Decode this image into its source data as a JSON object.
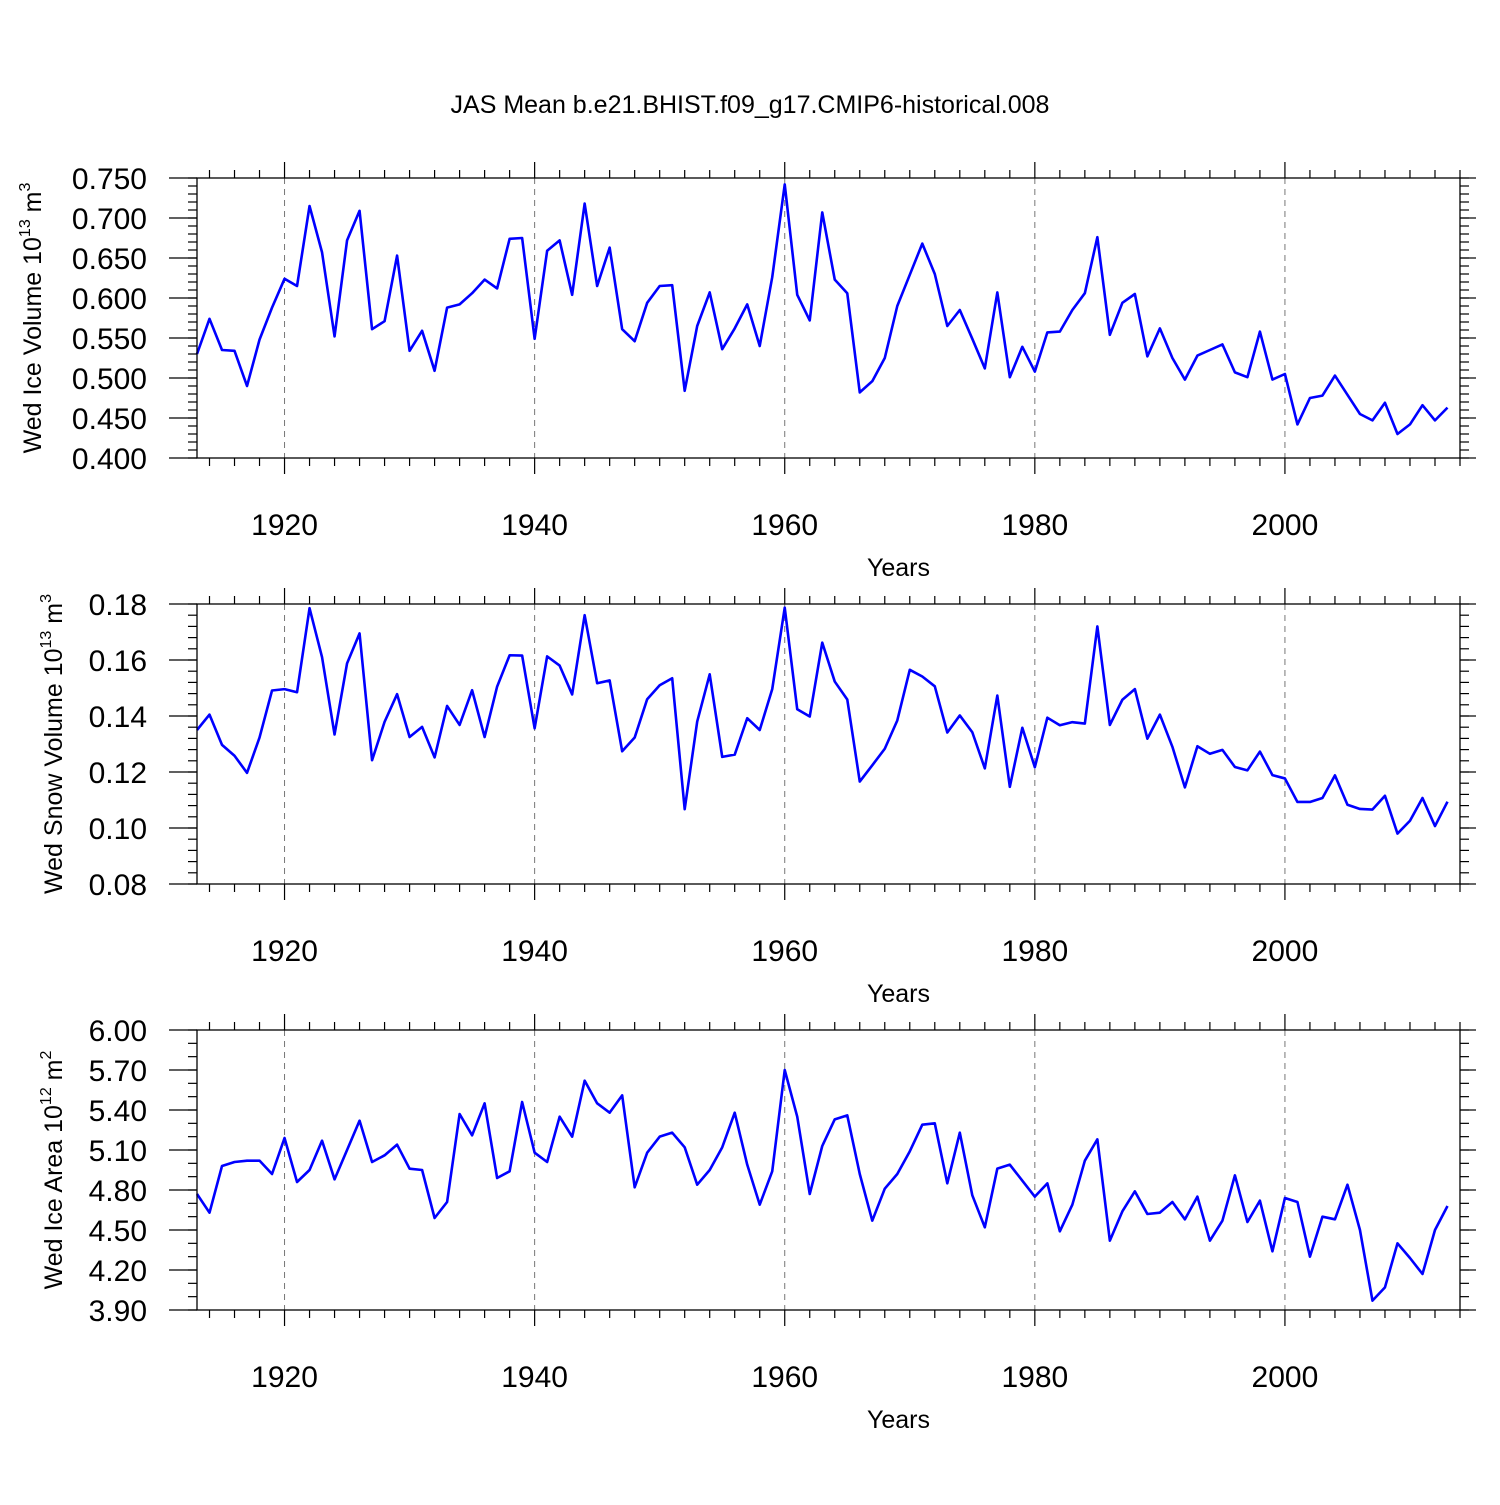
{
  "figure": {
    "title": "JAS Mean b.e21.BHIST.f09_g17.CMIP6-historical.008"
  },
  "colors": {
    "series": "#0000ff",
    "axes": "#000000",
    "grid": "#777777"
  },
  "chart_data": [
    {
      "type": "line",
      "ylabel": "Wed Ice Volume 10",
      "ylabel_exponent": "13",
      "ylabel_unit": "m",
      "ylabel_unit_exponent": "3",
      "xlabel": "Years",
      "xlim": [
        1913,
        2014
      ],
      "ylim": [
        0.4,
        0.75
      ],
      "xticks": [
        1920,
        1940,
        1960,
        1980,
        2000
      ],
      "xtick_labels": [
        "1920",
        "1940",
        "1960",
        "1980",
        "2000"
      ],
      "yticks": [
        0.4,
        0.45,
        0.5,
        0.55,
        0.6,
        0.65,
        0.7,
        0.75
      ],
      "ytick_labels": [
        "0.400",
        "0.450",
        "0.500",
        "0.550",
        "0.600",
        "0.650",
        "0.700",
        "0.750"
      ],
      "y_minor_step": 0.01,
      "grid_x": true,
      "series": [
        {
          "name": "Wed Ice Volume",
          "x_start": 1913,
          "values": [
            0.53,
            0.574,
            0.535,
            0.534,
            0.49,
            0.548,
            0.588,
            0.624,
            0.615,
            0.715,
            0.657,
            0.552,
            0.672,
            0.709,
            0.561,
            0.571,
            0.653,
            0.534,
            0.559,
            0.509,
            0.588,
            0.592,
            0.606,
            0.623,
            0.612,
            0.674,
            0.675,
            0.549,
            0.659,
            0.672,
            0.604,
            0.718,
            0.615,
            0.663,
            0.561,
            0.546,
            0.594,
            0.615,
            0.616,
            0.484,
            0.565,
            0.607,
            0.536,
            0.562,
            0.592,
            0.54,
            0.626,
            0.742,
            0.604,
            0.572,
            0.707,
            0.623,
            0.606,
            0.482,
            0.496,
            0.525,
            0.59,
            0.629,
            0.668,
            0.63,
            0.565,
            0.585,
            0.549,
            0.512,
            0.607,
            0.501,
            0.539,
            0.508,
            0.557,
            0.558,
            0.585,
            0.606,
            0.676,
            0.554,
            0.594,
            0.605,
            0.527,
            0.562,
            0.525,
            0.498,
            0.528,
            0.535,
            0.542,
            0.507,
            0.501,
            0.558,
            0.498,
            0.505,
            0.442,
            0.475,
            0.478,
            0.503,
            0.479,
            0.455,
            0.447,
            0.469,
            0.43,
            0.442,
            0.466,
            0.447,
            0.463
          ]
        }
      ]
    },
    {
      "type": "line",
      "ylabel": "Wed Snow Volume 10",
      "ylabel_exponent": "13",
      "ylabel_unit": "m",
      "ylabel_unit_exponent": "3",
      "xlabel": "Years",
      "xlim": [
        1913,
        2014
      ],
      "ylim": [
        0.08,
        0.18
      ],
      "xticks": [
        1920,
        1940,
        1960,
        1980,
        2000
      ],
      "xtick_labels": [
        "1920",
        "1940",
        "1960",
        "1980",
        "2000"
      ],
      "yticks": [
        0.08,
        0.1,
        0.12,
        0.14,
        0.16,
        0.18
      ],
      "ytick_labels": [
        "0.08",
        "0.10",
        "0.12",
        "0.14",
        "0.16",
        "0.18"
      ],
      "y_minor_step": 0.004,
      "grid_x": true,
      "series": [
        {
          "name": "Wed Snow Volume",
          "x_start": 1913,
          "values": [
            0.135,
            0.1405,
            0.1297,
            0.1258,
            0.1197,
            0.1323,
            0.1491,
            0.1496,
            0.1485,
            0.1785,
            0.161,
            0.1334,
            0.1588,
            0.1695,
            0.1242,
            0.1379,
            0.1478,
            0.1325,
            0.1361,
            0.1252,
            0.1436,
            0.1368,
            0.1492,
            0.1325,
            0.1505,
            0.1617,
            0.1616,
            0.1356,
            0.1613,
            0.158,
            0.1477,
            0.176,
            0.1517,
            0.1527,
            0.1274,
            0.1323,
            0.146,
            0.151,
            0.1535,
            0.1067,
            0.138,
            0.1549,
            0.1254,
            0.1262,
            0.1392,
            0.135,
            0.1496,
            0.1787,
            0.1424,
            0.1398,
            0.1662,
            0.1523,
            0.1459,
            0.1166,
            0.1224,
            0.1283,
            0.1384,
            0.1565,
            0.1541,
            0.1506,
            0.1341,
            0.1402,
            0.1342,
            0.1213,
            0.1473,
            0.1147,
            0.1358,
            0.1217,
            0.1394,
            0.1367,
            0.1378,
            0.1373,
            0.172,
            0.1368,
            0.1458,
            0.1496,
            0.1319,
            0.1405,
            0.129,
            0.1145,
            0.1292,
            0.1265,
            0.1279,
            0.1218,
            0.1206,
            0.1273,
            0.1189,
            0.1177,
            0.1093,
            0.1093,
            0.1107,
            0.1188,
            0.1083,
            0.1068,
            0.1066,
            0.1115,
            0.098,
            0.1026,
            0.1107,
            0.1007,
            0.1094
          ]
        }
      ]
    },
    {
      "type": "line",
      "ylabel": "Wed Ice Area 10",
      "ylabel_exponent": "12",
      "ylabel_unit": "m",
      "ylabel_unit_exponent": "2",
      "xlabel": "Years",
      "xlim": [
        1913,
        2014
      ],
      "ylim": [
        3.9,
        6.0
      ],
      "xticks": [
        1920,
        1940,
        1960,
        1980,
        2000
      ],
      "xtick_labels": [
        "1920",
        "1940",
        "1960",
        "1980",
        "2000"
      ],
      "yticks": [
        3.9,
        4.2,
        4.5,
        4.8,
        5.1,
        5.4,
        5.7,
        6.0
      ],
      "ytick_labels": [
        "3.90",
        "4.20",
        "4.50",
        "4.80",
        "5.10",
        "5.40",
        "5.70",
        "6.00"
      ],
      "y_minor_step": 0.1,
      "grid_x": true,
      "series": [
        {
          "name": "Wed Ice Area",
          "x_start": 1913,
          "values": [
            4.77,
            4.63,
            4.98,
            5.01,
            5.02,
            5.02,
            4.92,
            5.19,
            4.86,
            4.95,
            5.17,
            4.88,
            5.1,
            5.32,
            5.01,
            5.06,
            5.14,
            4.96,
            4.95,
            4.59,
            4.71,
            5.37,
            5.21,
            5.45,
            4.89,
            4.94,
            5.46,
            5.08,
            5.01,
            5.35,
            5.2,
            5.62,
            5.45,
            5.38,
            5.51,
            4.82,
            5.08,
            5.2,
            5.23,
            5.12,
            4.84,
            4.95,
            5.12,
            5.38,
            4.99,
            4.69,
            4.94,
            5.7,
            5.35,
            4.77,
            5.13,
            5.33,
            5.36,
            4.92,
            4.57,
            4.81,
            4.92,
            5.09,
            5.29,
            5.3,
            4.85,
            5.23,
            4.76,
            4.52,
            4.96,
            4.99,
            4.87,
            4.75,
            4.85,
            4.49,
            4.69,
            5.02,
            5.18,
            4.42,
            4.64,
            4.79,
            4.62,
            4.63,
            4.71,
            4.58,
            4.75,
            4.42,
            4.57,
            4.91,
            4.56,
            4.72,
            4.34,
            4.74,
            4.71,
            4.3,
            4.6,
            4.58,
            4.84,
            4.5,
            3.97,
            4.07,
            4.4,
            4.29,
            4.17,
            4.5,
            4.68
          ]
        }
      ]
    }
  ]
}
